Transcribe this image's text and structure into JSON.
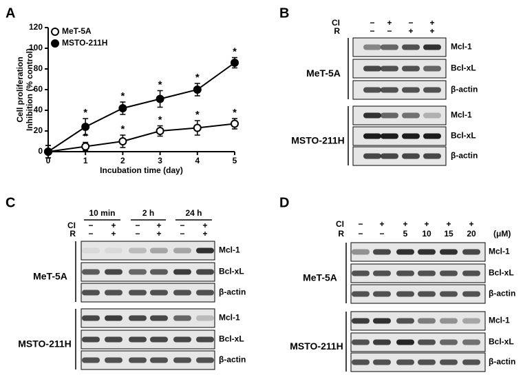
{
  "chart_data": {
    "type": "line",
    "panel_label": "A",
    "x_label": "Incubation time (day)",
    "y_label": [
      "Cell proliferation",
      "Inhibition (% control)"
    ],
    "x": [
      0,
      1,
      2,
      3,
      4,
      5
    ],
    "xlim": [
      0,
      5
    ],
    "xticks": [
      0,
      1,
      2,
      3,
      4,
      5
    ],
    "ylim": [
      0,
      120
    ],
    "yticks": [
      0,
      20,
      40,
      60,
      80,
      100,
      120
    ],
    "legend": "upper left",
    "grid": false,
    "series": [
      {
        "name": "MeT-5A",
        "color": "#000000",
        "marker": "open",
        "values": [
          0,
          5,
          10,
          20,
          23,
          27
        ],
        "errors": [
          6,
          4,
          6,
          5,
          7,
          5
        ],
        "markers": [
          null,
          "*",
          "*",
          "*",
          "*",
          "*"
        ]
      },
      {
        "name": "MSTO-211H",
        "color": "#000000",
        "marker": "filled",
        "values": [
          0,
          24,
          42,
          51,
          60,
          86
        ],
        "errors": [
          6,
          8,
          6,
          8,
          6,
          5
        ],
        "markers": [
          null,
          "*",
          "*",
          "*",
          "*",
          "*"
        ]
      }
    ]
  },
  "panels": {
    "B": {
      "label": "B",
      "treatments": [
        {
          "name": "CI",
          "levels": [
            "−",
            "+",
            "−",
            "+"
          ]
        },
        {
          "name": "R",
          "levels": [
            "−",
            "−",
            "+",
            "+"
          ]
        }
      ],
      "cell_lines": [
        {
          "name": "MeT-5A",
          "proteins": [
            "Mcl-1",
            "Bcl-xL",
            "β-actin"
          ]
        },
        {
          "name": "MSTO-211H",
          "proteins": [
            "Mcl-1",
            "Bcl-xL",
            "β-actin"
          ]
        }
      ]
    },
    "C": {
      "label": "C",
      "time_groups": [
        "10 min",
        "2 h",
        "24 h"
      ],
      "treatments": [
        {
          "name": "CI",
          "levels": [
            "−",
            "+",
            "−",
            "+",
            "−",
            "+"
          ]
        },
        {
          "name": "R",
          "levels": [
            "−",
            "+",
            "−",
            "+",
            "−",
            "+"
          ]
        }
      ],
      "cell_lines": [
        {
          "name": "MeT-5A",
          "proteins": [
            "Mcl-1",
            "Bcl-xL",
            "β-actin"
          ]
        },
        {
          "name": "MSTO-211H",
          "proteins": [
            "Mcl-1",
            "Bcl-xL",
            "β-actin"
          ]
        }
      ]
    },
    "D": {
      "label": "D",
      "unit": "(μM)",
      "treatments": [
        {
          "name": "CI",
          "levels": [
            "−",
            "+",
            "+",
            "+",
            "+",
            "+"
          ]
        },
        {
          "name": "R",
          "levels": [
            "−",
            "−",
            "5",
            "10",
            "15",
            "20"
          ]
        }
      ],
      "cell_lines": [
        {
          "name": "MeT-5A",
          "proteins": [
            "Mcl-1",
            "Bcl-xL",
            "β-actin"
          ]
        },
        {
          "name": "MSTO-211H",
          "proteins": [
            "Mcl-1",
            "Bcl-xL",
            "β-actin"
          ]
        }
      ]
    }
  }
}
